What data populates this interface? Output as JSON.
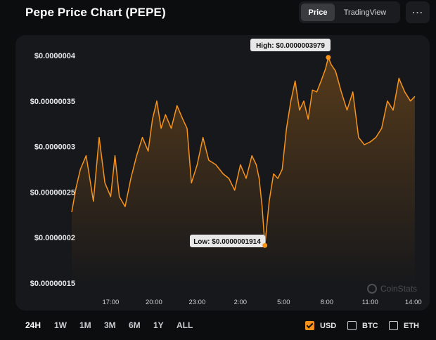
{
  "title": "Pepe Price Chart (PEPE)",
  "view_toggle": {
    "price": "Price",
    "tradingview": "TradingView"
  },
  "more_icon": "⋯",
  "watermark": "CoinStats",
  "high_label": "High: $0.0000003979",
  "low_label": "Low: $0.0000001914",
  "ranges": [
    "24H",
    "1W",
    "1M",
    "3M",
    "6M",
    "1Y",
    "ALL"
  ],
  "active_range": "24H",
  "currencies": [
    {
      "label": "USD",
      "checked": true
    },
    {
      "label": "BTC",
      "checked": false
    },
    {
      "label": "ETH",
      "checked": false
    }
  ],
  "colors": {
    "line": "#f7931a",
    "background": "#0c0d0f",
    "panel": "#17181b",
    "checkbox_on": "#f7931a"
  },
  "chart_data": {
    "type": "area",
    "xlabel": "",
    "ylabel": "",
    "ylim": [
      1.5e-07,
      4e-07
    ],
    "y_ticks": [
      "$0.0000004",
      "$0.00000035",
      "$0.0000003",
      "$0.00000025",
      "$0.0000002",
      "$0.00000015"
    ],
    "y_tick_values": [
      4e-07,
      3.5e-07,
      3e-07,
      2.5e-07,
      2e-07,
      1.5e-07
    ],
    "xlim": [
      14.2,
      38.4
    ],
    "x_ticks": [
      "17:00",
      "20:00",
      "23:00",
      "2:00",
      "5:00",
      "8:00",
      "11:00",
      "14:00"
    ],
    "x_tick_values": [
      17,
      20,
      23,
      26,
      29,
      32,
      35,
      38
    ],
    "x": [
      14.3,
      14.6,
      14.9,
      15.3,
      15.8,
      16.2,
      16.6,
      17.0,
      17.3,
      17.6,
      18.0,
      18.4,
      18.8,
      19.2,
      19.6,
      19.9,
      20.2,
      20.5,
      20.8,
      21.2,
      21.6,
      22.0,
      22.3,
      22.6,
      23.0,
      23.4,
      23.8,
      24.3,
      24.8,
      25.2,
      25.6,
      26.0,
      26.4,
      26.8,
      27.1,
      27.3,
      27.5,
      27.7,
      28.0,
      28.3,
      28.6,
      28.9,
      29.2,
      29.5,
      29.8,
      30.1,
      30.4,
      30.7,
      31.0,
      31.3,
      31.6,
      31.9,
      32.1,
      32.3,
      32.6,
      33.0,
      33.4,
      33.8,
      34.2,
      34.6,
      35.0,
      35.4,
      35.8,
      36.2,
      36.6,
      37.0,
      37.4,
      37.8,
      38.1
    ],
    "values": [
      2.28e-07,
      2.55e-07,
      2.75e-07,
      2.9e-07,
      2.4e-07,
      3.1e-07,
      2.6e-07,
      2.45e-07,
      2.9e-07,
      2.45e-07,
      2.34e-07,
      2.65e-07,
      2.9e-07,
      3.1e-07,
      2.95e-07,
      3.3e-07,
      3.5e-07,
      3.2e-07,
      3.35e-07,
      3.2e-07,
      3.45e-07,
      3.3e-07,
      3.2e-07,
      2.6e-07,
      2.8e-07,
      3.1e-07,
      2.85e-07,
      2.8e-07,
      2.7e-07,
      2.65e-07,
      2.52e-07,
      2.8e-07,
      2.65e-07,
      2.9e-07,
      2.8e-07,
      2.65e-07,
      2.35e-07,
      1.914e-07,
      2.4e-07,
      2.7e-07,
      2.65e-07,
      2.75e-07,
      3.2e-07,
      3.5e-07,
      3.72e-07,
      3.4e-07,
      3.5e-07,
      3.3e-07,
      3.62e-07,
      3.6e-07,
      3.72e-07,
      3.85e-07,
      3.979e-07,
      3.9e-07,
      3.83e-07,
      3.6e-07,
      3.4e-07,
      3.6e-07,
      3.1e-07,
      3.02e-07,
      3.05e-07,
      3.1e-07,
      3.2e-07,
      3.5e-07,
      3.4e-07,
      3.75e-07,
      3.6e-07,
      3.5e-07,
      3.55e-07
    ],
    "high": {
      "x": 32.1,
      "value": 3.979e-07
    },
    "low": {
      "x": 27.7,
      "value": 1.914e-07
    }
  }
}
